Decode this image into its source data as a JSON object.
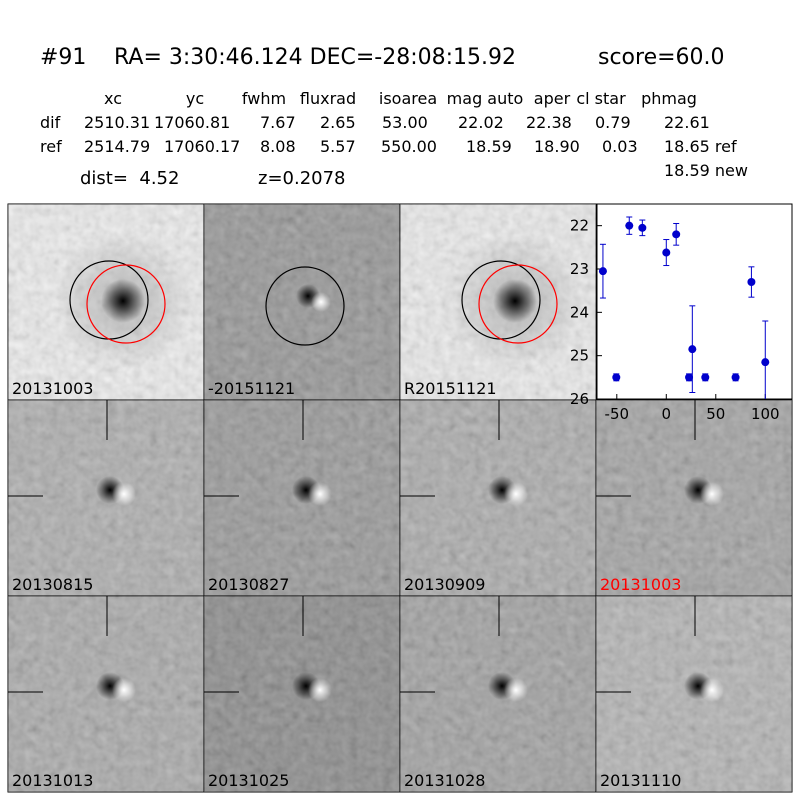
{
  "header": {
    "id": "#91",
    "coords": "RA= 3:30:46.124 DEC=-28:08:15.92",
    "score": "score=60.0",
    "dist": "dist=  4.52",
    "z": "z=0.2078"
  },
  "table": {
    "columns": [
      "xc",
      "yc",
      "fwhm",
      "fluxrad",
      "isoarea",
      "mag auto",
      "aper",
      "cl star",
      "phmag"
    ],
    "rows": [
      [
        "dif",
        "2510.31",
        "17060.81",
        "7.67",
        "2.65",
        "53.00",
        "22.02",
        "22.38",
        "0.79",
        "22.61"
      ],
      [
        "ref",
        "2514.79",
        "17060.17",
        "8.08",
        "5.57",
        "550.00",
        "18.59",
        "18.90",
        "0.03",
        "18.65 ref"
      ]
    ],
    "extra": "18.59 new"
  },
  "panels": [
    {
      "label": "20131003"
    },
    {
      "label": "-20151121"
    },
    {
      "label": "R20151121"
    },
    {
      "label": "20130815"
    },
    {
      "label": "20130827"
    },
    {
      "label": "20130909"
    },
    {
      "label": "20131003",
      "color": "#ff0000"
    },
    {
      "label": "20131013"
    },
    {
      "label": "20131025"
    },
    {
      "label": "20131028"
    },
    {
      "label": "20131110"
    }
  ],
  "chart_data": {
    "type": "errorbar",
    "color": "#0000cc",
    "x": [
      -64,
      -50.5,
      -37.4,
      -24.2,
      0,
      10,
      23,
      26.3,
      39.4,
      70,
      86,
      100
    ],
    "values": [
      23.05,
      25.5,
      22.0,
      22.05,
      22.62,
      22.2,
      25.5,
      24.85,
      25.5,
      25.5,
      23.3,
      25.15
    ],
    "errors": [
      0.62,
      0.08,
      0.2,
      0.18,
      0.3,
      0.25,
      0.08,
      1.0,
      0.08,
      0.08,
      0.35,
      0.95
    ],
    "xlim": [
      -70,
      127
    ],
    "ylim": [
      21.5,
      26
    ],
    "y_inverted": true,
    "xticks": [
      -50,
      0,
      50,
      100
    ],
    "yticks": [
      22,
      23,
      24,
      25,
      26
    ]
  }
}
